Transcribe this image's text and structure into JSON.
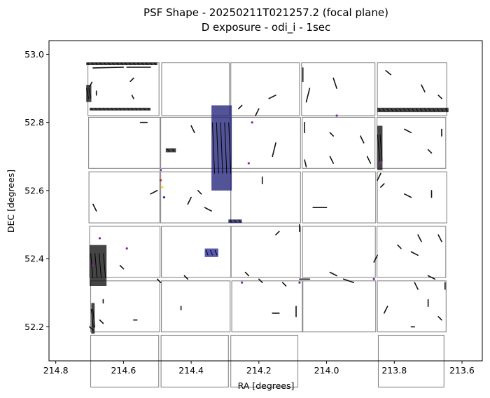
{
  "chart_data": {
    "type": "scatter",
    "title": "PSF Shape - 20250211T021257.2 (focal plane)",
    "subtitle": "D exposure - odi_i - 1sec",
    "xlabel": "RA [degrees]",
    "ylabel": "DEC [degrees]",
    "xlim": [
      214.82,
      213.54
    ],
    "ylim": [
      52.1,
      53.04
    ],
    "x_inverted": true,
    "grid": false,
    "xticks": [
      214.8,
      214.6,
      214.4,
      214.2,
      214.0,
      213.8,
      213.6
    ],
    "yticks": [
      52.2,
      52.4,
      52.6,
      52.8,
      53.0
    ],
    "xtick_labels": [
      "214.8",
      "214.6",
      "214.4",
      "214.2",
      "214.0",
      "213.8",
      "213.6"
    ],
    "ytick_labels": [
      "52.2",
      "52.4",
      "52.6",
      "52.8",
      "53.0"
    ],
    "colors": {
      "frame": "#888888",
      "whisker": "#111111",
      "accent_purple": "#7b2aa6",
      "accent_blue": "#2a2a9a",
      "accent_red": "#e02020",
      "accent_yellow": "#f0e020"
    },
    "ota_rows": [
      {
        "dec": [
          52.82,
          52.975
        ],
        "ra_edges": [
          214.705,
          214.495,
          214.487,
          214.287,
          214.283,
          214.08,
          214.074,
          213.857,
          213.85,
          213.645
        ],
        "omit": []
      },
      {
        "dec": [
          52.665,
          52.815
        ],
        "ra_edges": [
          214.703,
          214.492,
          214.49,
          214.285,
          214.282,
          214.077,
          214.072,
          213.857,
          213.851,
          213.648
        ],
        "omit": []
      },
      {
        "dec": [
          52.505,
          52.655
        ],
        "ra_edges": [
          214.702,
          214.493,
          214.49,
          214.283,
          214.283,
          214.077,
          214.071,
          213.855,
          213.85,
          213.645
        ],
        "omit": []
      },
      {
        "dec": [
          52.345,
          52.495
        ],
        "ra_edges": [
          214.7,
          214.492,
          214.488,
          214.283,
          214.282,
          214.077,
          214.071,
          213.856,
          213.851,
          213.648
        ],
        "omit": []
      },
      {
        "dec": [
          52.185,
          52.335
        ],
        "ra_edges": [
          214.697,
          214.493,
          214.488,
          214.285,
          214.28,
          214.072,
          214.07,
          213.855,
          213.85,
          213.647
        ],
        "omit": []
      },
      {
        "dec": [
          52.023,
          52.175
        ],
        "ra_edges": [
          214.697,
          214.496,
          214.489,
          214.29,
          214.283,
          214.085,
          214.07,
          213.855,
          213.847,
          213.653
        ],
        "omit": [
          3
        ]
      }
    ],
    "whiskers": [
      [
        214.69,
        52.96,
        214.6,
        52.962
      ],
      [
        214.59,
        52.962,
        214.52,
        52.962
      ],
      [
        214.58,
        52.92,
        214.57,
        52.93
      ],
      [
        214.693,
        52.918,
        214.7,
        52.905
      ],
      [
        214.68,
        52.892,
        214.68,
        52.88
      ],
      [
        214.575,
        52.88,
        214.57,
        52.87
      ],
      [
        214.07,
        52.96,
        214.07,
        52.92
      ],
      [
        214.05,
        52.9,
        214.06,
        52.86
      ],
      [
        213.98,
        52.93,
        213.97,
        52.9
      ],
      [
        213.825,
        52.952,
        213.81,
        52.94
      ],
      [
        213.72,
        52.91,
        213.71,
        52.89
      ],
      [
        213.67,
        52.88,
        213.66,
        52.87
      ],
      [
        214.15,
        52.88,
        214.17,
        52.87
      ],
      [
        214.2,
        52.84,
        214.21,
        52.82
      ],
      [
        214.25,
        52.85,
        214.26,
        52.84
      ],
      [
        214.55,
        52.8,
        214.53,
        52.8
      ],
      [
        214.4,
        52.79,
        214.39,
        52.77
      ],
      [
        214.065,
        52.8,
        214.065,
        52.77
      ],
      [
        213.99,
        52.77,
        213.98,
        52.76
      ],
      [
        213.9,
        52.76,
        213.89,
        52.74
      ],
      [
        213.88,
        52.7,
        213.87,
        52.68
      ],
      [
        213.77,
        52.78,
        213.75,
        52.77
      ],
      [
        213.7,
        52.72,
        213.69,
        52.71
      ],
      [
        213.66,
        52.78,
        213.66,
        52.76
      ],
      [
        214.065,
        52.69,
        214.06,
        52.67
      ],
      [
        213.99,
        52.7,
        213.98,
        52.68
      ],
      [
        214.15,
        52.74,
        214.16,
        52.7
      ],
      [
        214.19,
        52.64,
        214.19,
        52.62
      ],
      [
        214.38,
        52.6,
        214.37,
        52.59
      ],
      [
        214.4,
        52.58,
        214.41,
        52.56
      ],
      [
        214.36,
        52.55,
        214.34,
        52.54
      ],
      [
        214.5,
        52.6,
        214.52,
        52.59
      ],
      [
        213.77,
        52.59,
        213.75,
        52.58
      ],
      [
        213.69,
        52.6,
        213.69,
        52.58
      ],
      [
        213.84,
        52.65,
        213.85,
        52.63
      ],
      [
        213.83,
        52.62,
        213.84,
        52.61
      ],
      [
        214.0,
        52.55,
        214.04,
        52.55
      ],
      [
        213.79,
        52.44,
        213.78,
        52.43
      ],
      [
        213.73,
        52.47,
        213.72,
        52.45
      ],
      [
        213.67,
        52.47,
        213.66,
        52.45
      ],
      [
        213.75,
        52.42,
        213.73,
        52.41
      ],
      [
        213.85,
        52.41,
        213.86,
        52.39
      ],
      [
        214.69,
        52.56,
        214.68,
        52.54
      ],
      [
        214.08,
        52.5,
        214.08,
        52.48
      ],
      [
        214.14,
        52.48,
        214.15,
        52.47
      ],
      [
        214.08,
        52.34,
        214.05,
        52.34
      ],
      [
        213.95,
        52.34,
        213.92,
        52.33
      ],
      [
        213.99,
        52.36,
        213.97,
        52.35
      ],
      [
        213.74,
        52.33,
        213.73,
        52.31
      ],
      [
        213.7,
        52.35,
        213.68,
        52.34
      ],
      [
        213.65,
        52.33,
        213.65,
        52.31
      ],
      [
        214.24,
        52.36,
        214.23,
        52.35
      ],
      [
        214.2,
        52.34,
        214.19,
        52.33
      ],
      [
        214.13,
        52.33,
        214.12,
        52.32
      ],
      [
        214.5,
        52.34,
        214.49,
        52.33
      ],
      [
        214.42,
        52.35,
        214.41,
        52.34
      ],
      [
        214.61,
        52.38,
        214.6,
        52.37
      ],
      [
        214.66,
        52.28,
        214.66,
        52.27
      ],
      [
        214.67,
        52.22,
        214.66,
        52.21
      ],
      [
        214.7,
        52.2,
        214.69,
        52.19
      ],
      [
        214.09,
        52.26,
        214.09,
        52.23
      ],
      [
        214.16,
        52.24,
        214.14,
        52.24
      ],
      [
        213.7,
        52.28,
        213.7,
        52.26
      ],
      [
        213.67,
        52.23,
        213.66,
        52.22
      ],
      [
        213.75,
        52.2,
        213.74,
        52.2
      ],
      [
        213.82,
        52.26,
        213.83,
        52.24
      ],
      [
        214.43,
        52.26,
        214.43,
        52.25
      ],
      [
        214.57,
        52.22,
        214.56,
        52.22
      ]
    ],
    "dense_patches": [
      {
        "ra": [
          214.71,
          214.5
        ],
        "dec": [
          52.968,
          52.976
        ],
        "color": "#111111"
      },
      {
        "ra": [
          214.7,
          214.52
        ],
        "dec": [
          52.835,
          52.843
        ],
        "color": "#111111"
      },
      {
        "ra": [
          214.34,
          214.28
        ],
        "dec": [
          52.6,
          52.85
        ],
        "color": "#22227a"
      },
      {
        "ra": [
          214.475,
          214.445
        ],
        "dec": [
          52.712,
          52.724
        ],
        "color": "#111111"
      },
      {
        "ra": [
          213.85,
          213.64
        ],
        "dec": [
          52.83,
          52.843
        ],
        "color": "#111111"
      },
      {
        "ra": [
          214.7,
          214.65
        ],
        "dec": [
          52.32,
          52.44
        ],
        "color": "#111111"
      },
      {
        "ra": [
          214.36,
          214.32
        ],
        "dec": [
          52.405,
          52.43
        ],
        "color": "#2a2a9a"
      },
      {
        "ra": [
          214.29,
          214.25
        ],
        "dec": [
          52.505,
          52.515
        ],
        "color": "#1a1a5a"
      },
      {
        "ra": [
          214.695,
          214.685
        ],
        "dec": [
          52.18,
          52.27
        ],
        "color": "#111111"
      },
      {
        "ra": [
          214.71,
          214.695
        ],
        "dec": [
          52.86,
          52.91
        ],
        "color": "#111111"
      },
      {
        "ra": [
          213.85,
          213.835
        ],
        "dec": [
          52.66,
          52.79
        ],
        "color": "#111111"
      }
    ],
    "colored_points": [
      [
        214.49,
        52.63,
        "#e02020"
      ],
      [
        214.485,
        52.61,
        "#f0e020"
      ],
      [
        214.49,
        52.66,
        "#7b2aa6"
      ],
      [
        214.48,
        52.58,
        "#2a2a9a"
      ],
      [
        214.23,
        52.68,
        "#7b2aa6"
      ],
      [
        214.22,
        52.8,
        "#7b2aa6"
      ],
      [
        213.97,
        52.82,
        "#7b2aa6"
      ],
      [
        213.84,
        52.68,
        "#7b2aa6"
      ],
      [
        214.08,
        52.33,
        "#7b2aa6"
      ],
      [
        214.25,
        52.33,
        "#7b2aa6"
      ],
      [
        214.67,
        52.46,
        "#7b2aa6"
      ],
      [
        214.59,
        52.43,
        "#7b2aa6"
      ],
      [
        213.86,
        52.34,
        "#7b2aa6"
      ],
      [
        214.69,
        52.38,
        "#7b2aa6"
      ]
    ]
  }
}
